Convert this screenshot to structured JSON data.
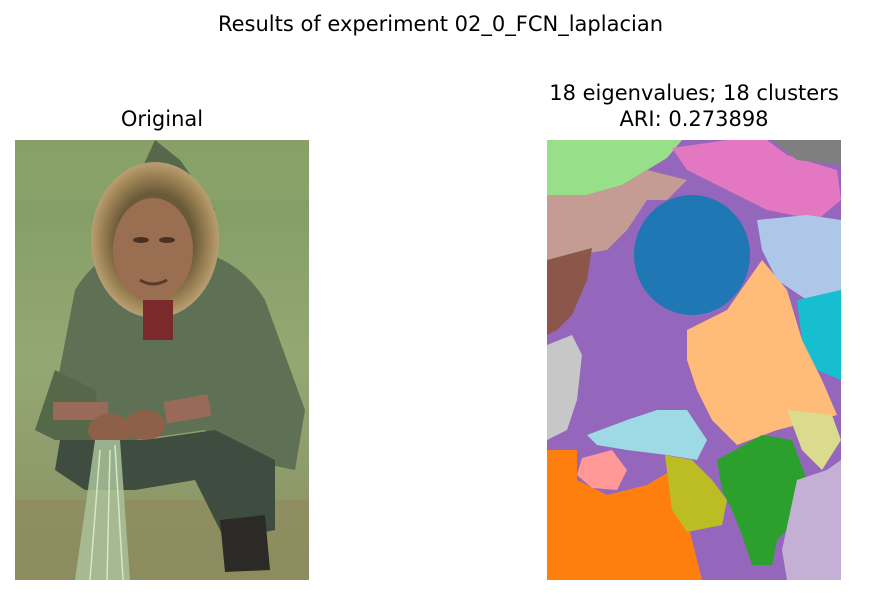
{
  "figure": {
    "suptitle": "Results of experiment 02_0_FCN_laplacian"
  },
  "left_panel": {
    "title": "Original",
    "image": "photo of a man in a green hooded parka with fur-trimmed hood, crouching on grass holding a fishing net"
  },
  "right_panel": {
    "title_line1": "18 eigenvalues; 18 clusters",
    "title_line2": "ARI: 0.273898",
    "image": "segmentation map with 18 color-coded clusters"
  },
  "palette": {
    "blue": "#1f77b4",
    "light_blue": "#aec7e8",
    "orange": "#ff7f0e",
    "light_orange": "#ffbb78",
    "green": "#2ca02c",
    "light_green": "#98df8a",
    "red": "#d62728",
    "pink_red": "#ff9896",
    "purple": "#9467bd",
    "light_purple": "#c5b0d5",
    "brown": "#8c564b",
    "rose_brown": "#c49c94",
    "pink": "#e377c2",
    "gray": "#7f7f7f",
    "light_gray": "#c7c7c7",
    "olive": "#bcbd22",
    "light_olive": "#dbdb8d",
    "cyan": "#17becf",
    "light_cyan": "#9edae5"
  }
}
